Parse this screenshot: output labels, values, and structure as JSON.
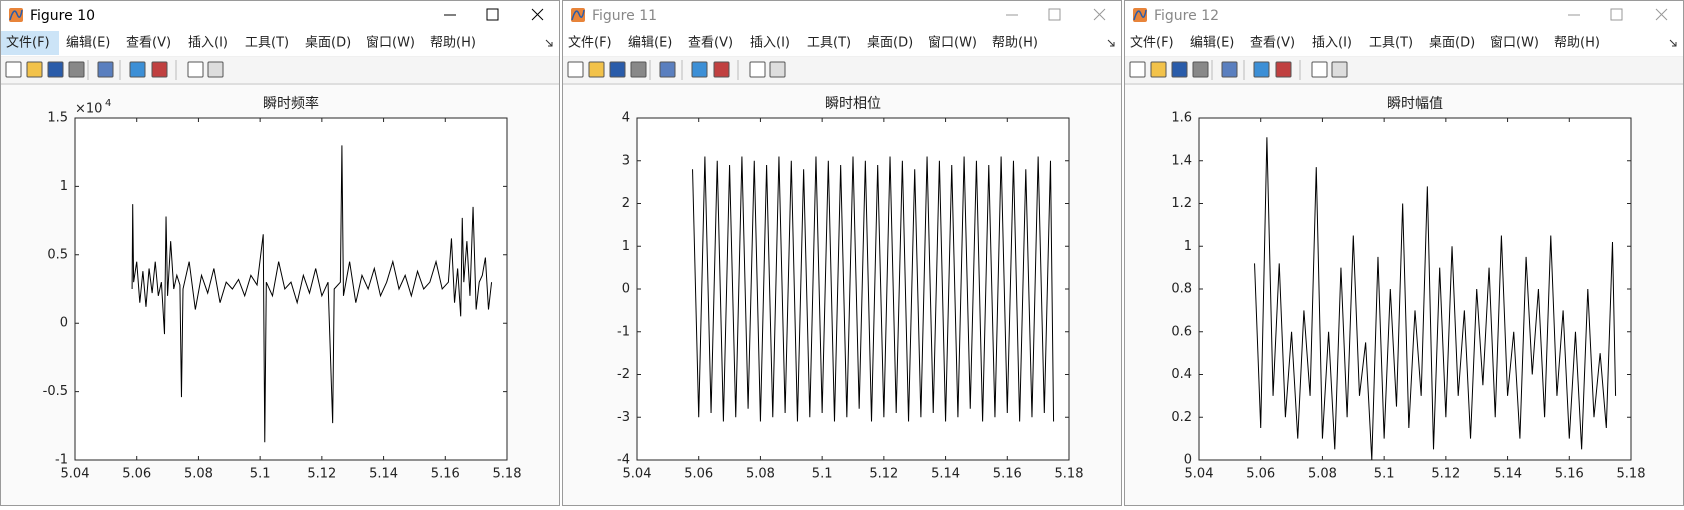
{
  "windows": [
    {
      "title": "Figure 10",
      "active": true,
      "menu": [
        "文件(F)",
        "编辑(E)",
        "查看(V)",
        "插入(I)",
        "工具(T)",
        "桌面(D)",
        "窗口(W)",
        "帮助(H)"
      ]
    },
    {
      "title": "Figure 11",
      "active": false,
      "menu": [
        "文件(F)",
        "编辑(E)",
        "查看(V)",
        "插入(I)",
        "工具(T)",
        "桌面(D)",
        "窗口(W)",
        "帮助(H)"
      ]
    },
    {
      "title": "Figure 12",
      "active": false,
      "menu": [
        "文件(F)",
        "编辑(E)",
        "查看(V)",
        "插入(I)",
        "工具(T)",
        "桌面(D)",
        "窗口(W)",
        "帮助(H)"
      ]
    }
  ],
  "chart_data": [
    {
      "type": "line",
      "title": "瞬时频率",
      "color": "#000000",
      "y_multiplier": "×10",
      "y_multiplier_exponent": "4",
      "xlim": [
        5.04,
        5.18
      ],
      "xticks": [
        5.04,
        5.06,
        5.08,
        5.1,
        5.12,
        5.14,
        5.16,
        5.18
      ],
      "ylim": [
        -1,
        1.5
      ],
      "yticks": [
        -1,
        -0.5,
        0,
        0.5,
        1,
        1.5
      ],
      "x": [
        5.0585,
        5.0587,
        5.059,
        5.06,
        5.061,
        5.062,
        5.063,
        5.064,
        5.065,
        5.066,
        5.067,
        5.068,
        5.069,
        5.0695,
        5.07,
        5.071,
        5.072,
        5.073,
        5.074,
        5.0745,
        5.075,
        5.077,
        5.079,
        5.081,
        5.083,
        5.085,
        5.087,
        5.089,
        5.091,
        5.093,
        5.095,
        5.097,
        5.099,
        5.101,
        5.1015,
        5.102,
        5.104,
        5.106,
        5.108,
        5.11,
        5.112,
        5.114,
        5.116,
        5.118,
        5.12,
        5.122,
        5.1235,
        5.124,
        5.126,
        5.1265,
        5.127,
        5.129,
        5.131,
        5.133,
        5.135,
        5.137,
        5.139,
        5.141,
        5.143,
        5.145,
        5.147,
        5.149,
        5.151,
        5.153,
        5.155,
        5.157,
        5.159,
        5.161,
        5.162,
        5.163,
        5.164,
        5.165,
        5.1655,
        5.166,
        5.167,
        5.168,
        5.169,
        5.17,
        5.171,
        5.172,
        5.173,
        5.174,
        5.175
      ],
      "values": [
        0.25,
        0.87,
        0.3,
        0.45,
        0.15,
        0.38,
        0.12,
        0.4,
        0.22,
        0.45,
        0.2,
        0.3,
        -0.08,
        0.78,
        0.2,
        0.6,
        0.25,
        0.35,
        0.28,
        -0.54,
        0.25,
        0.45,
        0.1,
        0.35,
        0.22,
        0.4,
        0.15,
        0.3,
        0.25,
        0.32,
        0.2,
        0.35,
        0.28,
        0.65,
        -0.87,
        0.3,
        0.2,
        0.45,
        0.25,
        0.3,
        0.15,
        0.35,
        0.22,
        0.4,
        0.2,
        0.3,
        -0.73,
        0.25,
        0.3,
        1.3,
        0.2,
        0.45,
        0.15,
        0.35,
        0.25,
        0.4,
        0.2,
        0.3,
        0.45,
        0.25,
        0.35,
        0.2,
        0.38,
        0.25,
        0.3,
        0.45,
        0.25,
        0.3,
        0.62,
        0.15,
        0.4,
        0.05,
        0.77,
        0.3,
        0.6,
        0.2,
        0.85,
        0.1,
        0.3,
        0.35,
        0.48,
        0.1,
        0.3
      ]
    },
    {
      "type": "line",
      "title": "瞬时相位",
      "color": "#000000",
      "xlim": [
        5.04,
        5.18
      ],
      "xticks": [
        5.04,
        5.06,
        5.08,
        5.1,
        5.12,
        5.14,
        5.16,
        5.18
      ],
      "ylim": [
        -4,
        4
      ],
      "yticks": [
        -4,
        -3,
        -2,
        -1,
        0,
        1,
        2,
        3,
        4
      ],
      "x": [
        5.058,
        5.06,
        5.062,
        5.064,
        5.066,
        5.068,
        5.07,
        5.072,
        5.074,
        5.076,
        5.078,
        5.08,
        5.082,
        5.084,
        5.086,
        5.088,
        5.09,
        5.092,
        5.094,
        5.096,
        5.098,
        5.1,
        5.102,
        5.104,
        5.106,
        5.108,
        5.11,
        5.112,
        5.114,
        5.116,
        5.118,
        5.12,
        5.122,
        5.124,
        5.126,
        5.128,
        5.13,
        5.132,
        5.134,
        5.136,
        5.138,
        5.14,
        5.142,
        5.144,
        5.146,
        5.148,
        5.15,
        5.152,
        5.154,
        5.156,
        5.158,
        5.16,
        5.162,
        5.164,
        5.166,
        5.168,
        5.17,
        5.172,
        5.174,
        5.175
      ],
      "values": [
        2.8,
        -3.0,
        3.1,
        -2.9,
        3.0,
        -3.1,
        2.9,
        -3.0,
        3.1,
        -2.8,
        3.0,
        -3.1,
        2.9,
        -3.0,
        3.1,
        -2.9,
        3.0,
        -3.1,
        2.8,
        -3.0,
        3.1,
        -2.9,
        3.0,
        -3.1,
        2.9,
        -3.0,
        3.1,
        -2.8,
        3.0,
        -3.1,
        2.9,
        -3.0,
        3.1,
        -2.9,
        3.0,
        -3.1,
        2.8,
        -3.0,
        3.1,
        -2.9,
        3.0,
        -3.1,
        2.9,
        -3.0,
        3.1,
        -2.8,
        3.0,
        -3.1,
        2.9,
        -3.0,
        3.1,
        -2.9,
        3.0,
        -3.1,
        2.8,
        -3.0,
        3.1,
        -2.9,
        3.0,
        -3.1
      ]
    },
    {
      "type": "line",
      "title": "瞬时幅值",
      "color": "#000000",
      "xlim": [
        5.04,
        5.18
      ],
      "xticks": [
        5.04,
        5.06,
        5.08,
        5.1,
        5.12,
        5.14,
        5.16,
        5.18
      ],
      "ylim": [
        0,
        1.6
      ],
      "yticks": [
        0,
        0.2,
        0.4,
        0.6,
        0.8,
        1,
        1.2,
        1.4,
        1.6
      ],
      "x": [
        5.058,
        5.06,
        5.062,
        5.064,
        5.066,
        5.068,
        5.07,
        5.072,
        5.074,
        5.076,
        5.078,
        5.08,
        5.082,
        5.084,
        5.086,
        5.088,
        5.09,
        5.092,
        5.094,
        5.096,
        5.098,
        5.1,
        5.102,
        5.104,
        5.106,
        5.108,
        5.11,
        5.112,
        5.114,
        5.116,
        5.118,
        5.12,
        5.122,
        5.124,
        5.126,
        5.128,
        5.13,
        5.132,
        5.134,
        5.136,
        5.138,
        5.14,
        5.142,
        5.144,
        5.146,
        5.148,
        5.15,
        5.152,
        5.154,
        5.156,
        5.158,
        5.16,
        5.162,
        5.164,
        5.166,
        5.168,
        5.17,
        5.172,
        5.174,
        5.175
      ],
      "values": [
        0.92,
        0.15,
        1.51,
        0.3,
        0.92,
        0.2,
        0.6,
        0.1,
        0.7,
        0.3,
        1.37,
        0.1,
        0.6,
        0.05,
        0.9,
        0.2,
        1.05,
        0.3,
        0.55,
        0.0,
        0.95,
        0.1,
        0.8,
        0.25,
        1.2,
        0.15,
        0.7,
        0.3,
        1.28,
        0.05,
        0.9,
        0.2,
        1.0,
        0.3,
        0.7,
        0.1,
        0.8,
        0.35,
        0.9,
        0.2,
        1.05,
        0.3,
        0.6,
        0.1,
        0.95,
        0.4,
        0.8,
        0.2,
        1.05,
        0.3,
        0.7,
        0.1,
        0.6,
        0.05,
        0.8,
        0.2,
        0.5,
        0.15,
        1.02,
        0.3
      ]
    }
  ]
}
